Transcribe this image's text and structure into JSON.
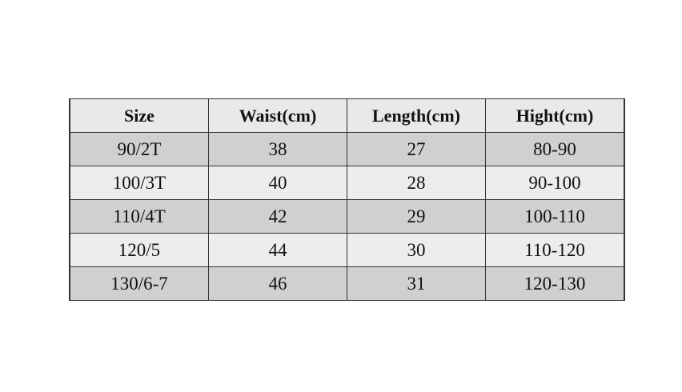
{
  "table": {
    "headers": [
      "Size",
      "Waist(cm)",
      "Length(cm)",
      "Hight(cm)"
    ],
    "rows": [
      [
        "90/2T",
        "38",
        "27",
        "80-90"
      ],
      [
        "100/3T",
        "40",
        "28",
        "90-100"
      ],
      [
        "110/4T",
        "42",
        "29",
        "100-110"
      ],
      [
        "120/5",
        "44",
        "30",
        "110-120"
      ],
      [
        "130/6-7",
        "46",
        "31",
        "120-130"
      ]
    ]
  },
  "colors": {
    "header_bg": "#e9e9e9",
    "row_dark": "#d0d0d0",
    "row_light": "#ededed",
    "border": "#333333"
  }
}
